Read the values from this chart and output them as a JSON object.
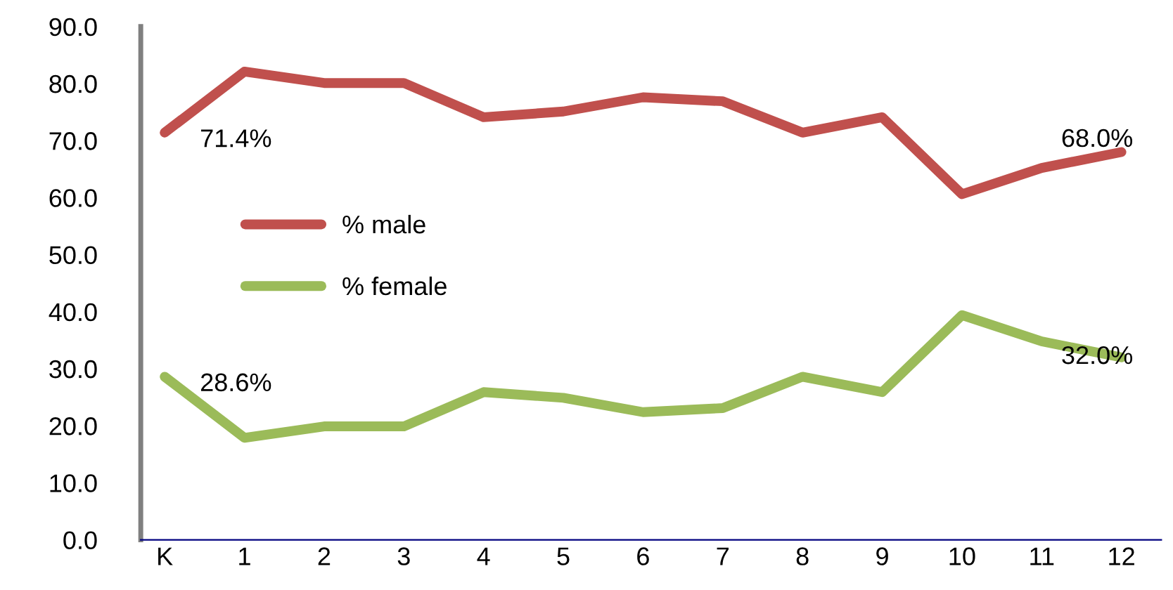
{
  "chart_data": {
    "type": "line",
    "categories": [
      "K",
      "1",
      "2",
      "3",
      "4",
      "5",
      "6",
      "7",
      "8",
      "9",
      "10",
      "11",
      "12"
    ],
    "series": [
      {
        "name": "% male",
        "color": "#c0504d",
        "values": [
          71.4,
          82.1,
          80.1,
          80.1,
          74.1,
          75.1,
          77.6,
          76.9,
          71.4,
          74.1,
          60.6,
          65.2,
          68.0
        ],
        "value_labels": [
          "71.4%",
          null,
          null,
          null,
          null,
          null,
          null,
          null,
          null,
          null,
          null,
          null,
          "68.0%"
        ]
      },
      {
        "name": "% female",
        "color": "#9bbb59",
        "values": [
          28.6,
          17.9,
          19.9,
          19.9,
          25.9,
          24.9,
          22.4,
          23.1,
          28.6,
          25.9,
          39.4,
          34.8,
          32.0
        ],
        "value_labels": [
          "28.6%",
          null,
          null,
          null,
          null,
          null,
          null,
          null,
          null,
          null,
          null,
          null,
          "32.0%"
        ]
      }
    ],
    "ylim": [
      0,
      90
    ],
    "yticks": [
      {
        "value": 0,
        "label": "0.0"
      },
      {
        "value": 10,
        "label": "10.0"
      },
      {
        "value": 20,
        "label": "20.0"
      },
      {
        "value": 30,
        "label": "30.0"
      },
      {
        "value": 40,
        "label": "40.0"
      },
      {
        "value": 50,
        "label": "50.0"
      },
      {
        "value": 60,
        "label": "60.0"
      },
      {
        "value": 70,
        "label": "70.0"
      },
      {
        "value": 80,
        "label": "80.0"
      },
      {
        "value": 90,
        "label": "90.0"
      }
    ],
    "grid": false,
    "legend": "center left",
    "marker": "none",
    "line_style": "solid"
  }
}
